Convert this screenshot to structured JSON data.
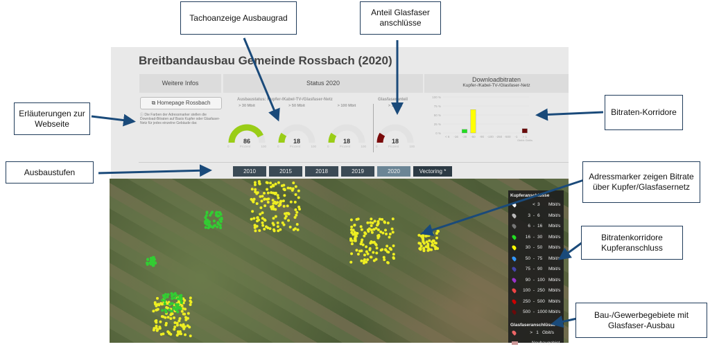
{
  "title": "Breitbandausbau Gemeinde Rossbach (2020)",
  "headers": {
    "infos": "Weitere Infos",
    "status": "Status 2020",
    "download": "Downloadbitraten",
    "download_sub": "Kupfer-/Kabel-TV-/Glasfaser-Netz"
  },
  "homepage_button": "Homepage Rossbach",
  "info_text": "Die Farben der Adressmarker stellen die Download-Bitraten auf Basis Kupfer oder Glasfaser-Netz für jedes einzelne Gebäude dar.",
  "gauges_title": "Ausbaustatus: Kupfer-/Kabel-TV-/Glasfaser-Netz",
  "glas_title": "Glasfaseranteil",
  "gauges": [
    {
      "label": "> 30 Mbit",
      "value": 86,
      "color": "#9acd17"
    },
    {
      "label": "> 50 Mbit",
      "value": 18,
      "color": "#9acd17"
    },
    {
      "label": "> 100 Mbit",
      "value": 18,
      "color": "#9acd17"
    },
    {
      "label": "> 1 Gbit",
      "value": 18,
      "color": "#7a0a0a"
    }
  ],
  "gauge_unit": "Prozent",
  "gauge_min": "0",
  "gauge_max": "100",
  "years": [
    "2010",
    "2015",
    "2018",
    "2019",
    "2020",
    "Vectoring *"
  ],
  "active_year": "2020",
  "chart_data": {
    "type": "bar",
    "ylim": [
      0,
      100
    ],
    "yticks": [
      "100 %",
      "75 %",
      "50 %",
      "25 %",
      "0 %"
    ],
    "categories": [
      "< 6",
      "-16",
      "-30",
      "-50",
      "-90",
      "-100",
      "-250",
      "-500",
      "-1",
      "> 1"
    ],
    "values": [
      0,
      0,
      10,
      65,
      0,
      0,
      0,
      0,
      0,
      12
    ],
    "colors": [
      "#ffffff",
      "#888888",
      "#22dd22",
      "#ffff00",
      "#3399ff",
      "#333399",
      "#9933cc",
      "#ee4444",
      "#cc0000",
      "#6a0a0a"
    ],
    "xunit": "Gbit/s Gbit/s"
  },
  "legend": {
    "title": "Kupferanschlüsse",
    "rows": [
      {
        "from": "",
        "sep": "<",
        "to": "3",
        "unit": "Mbit/s",
        "color": "#ffffff"
      },
      {
        "from": "3",
        "sep": "-",
        "to": "6",
        "unit": "Mbit/s",
        "color": "#bbbbbb"
      },
      {
        "from": "6",
        "sep": "-",
        "to": "16",
        "unit": "Mbit/s",
        "color": "#777777"
      },
      {
        "from": "16",
        "sep": "-",
        "to": "30",
        "unit": "Mbit/s",
        "color": "#22dd22"
      },
      {
        "from": "30",
        "sep": "-",
        "to": "50",
        "unit": "Mbit/s",
        "color": "#ffff00"
      },
      {
        "from": "50",
        "sep": "-",
        "to": "75",
        "unit": "Mbit/s",
        "color": "#3399ff"
      },
      {
        "from": "75",
        "sep": "-",
        "to": "90",
        "unit": "Mbit/s",
        "color": "#4444aa"
      },
      {
        "from": "90",
        "sep": "-",
        "to": "100",
        "unit": "Mbit/s",
        "color": "#9933cc"
      },
      {
        "from": "100",
        "sep": "-",
        "to": "250",
        "unit": "Mbit/s",
        "color": "#ee4444"
      },
      {
        "from": "250",
        "sep": "-",
        "to": "500",
        "unit": "Mbit/s",
        "color": "#cc0000"
      },
      {
        "from": "500",
        "sep": "-",
        "to": "1000",
        "unit": "Mbit/s",
        "color": "#6a0a0a"
      }
    ],
    "glas_title": "Glasfaseranschlüsse",
    "glas_sep": ">",
    "glas_val": "1",
    "glas_unit": "Gbit/s",
    "neubau": "Neubaugebiet"
  },
  "callouts": {
    "tacho": "Tachoanzeige Ausbaugrad",
    "anteil": "Anteil Glasfaser anschlüsse",
    "erl": "Erläuterungen zur Webseite",
    "stufen": "Ausbaustufen",
    "korridore": "Bitraten-Korridore",
    "adress": "Adressmarker zeigen Bitrate über Kupfer/Glasfasernetz",
    "kupfer": "Bitratenkorridore Kupferanschluss",
    "bau": "Bau-/Gewerbegebiete mit Glasfaser-Ausbau"
  }
}
